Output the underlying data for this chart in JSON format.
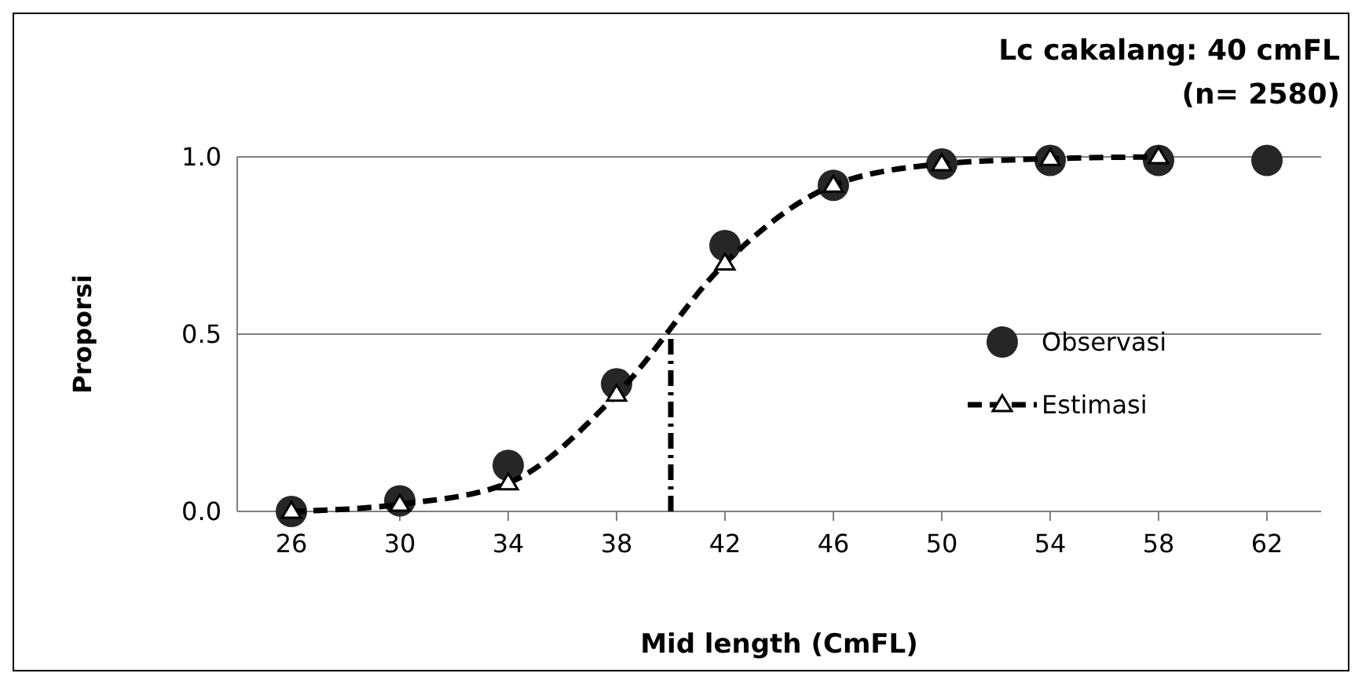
{
  "chart_data": {
    "type": "line",
    "title": "Lc cakalang: 40 cmFL",
    "subtitle": "(n= 2580)",
    "xlabel": "Mid length (CmFL)",
    "ylabel": "Proporsi",
    "xlim": [
      24,
      64
    ],
    "xticks": [
      26,
      30,
      34,
      38,
      42,
      46,
      50,
      54,
      58,
      62
    ],
    "ylim": [
      0,
      1
    ],
    "yticks": [
      {
        "value": 0,
        "label": "0.0"
      },
      {
        "value": 0.5,
        "label": "0.5"
      },
      {
        "value": 1,
        "label": "1.0"
      }
    ],
    "grid": "y",
    "legend": "right",
    "x": [
      26,
      30,
      34,
      38,
      42,
      46,
      50,
      54,
      58,
      62
    ],
    "series": [
      {
        "name": "Observasi",
        "type": "scatter",
        "marker": "circle",
        "color": "#262626",
        "values": [
          0,
          0.03,
          0.13,
          0.36,
          0.75,
          0.92,
          0.98,
          0.99,
          0.99,
          0.99
        ]
      },
      {
        "name": "Estimasi",
        "marker": "triangle",
        "line_style": "dashed",
        "color": "#000000",
        "x": [
          26,
          30,
          34,
          38,
          42,
          46,
          50,
          54,
          58
        ],
        "values": [
          0,
          0.02,
          0.08,
          0.33,
          0.7,
          0.92,
          0.98,
          0.995,
          1.0
        ]
      },
      {
        "marker": "none",
        "line_style": "dotted",
        "color": "#000000",
        "x": [
          40,
          40
        ],
        "values": [
          0,
          0.5
        ]
      }
    ]
  }
}
